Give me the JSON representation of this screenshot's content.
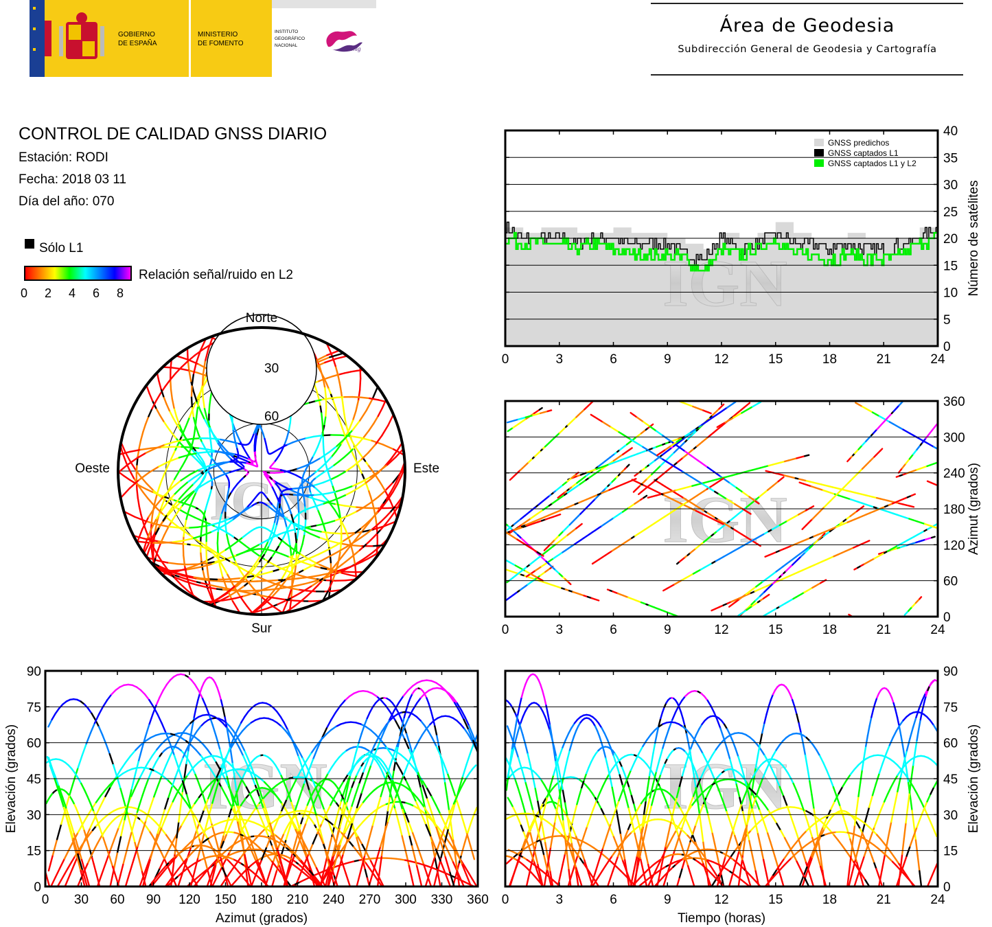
{
  "header": {
    "logo": {
      "gobierno": [
        "GOBIERNO",
        "DE ESPAÑA"
      ],
      "ministerio": [
        "MINISTERIO",
        "DE FOMENTO"
      ],
      "instituto": [
        "INSTITUTO",
        "GEOGRÁFICO",
        "NACIONAL"
      ],
      "cnig": "cnig"
    },
    "title": "Área de Geodesia",
    "subtitle": "Subdirección General de Geodesia y Cartografía"
  },
  "info": {
    "title": "CONTROL DE CALIDAD GNSS DIARIO",
    "station": "Estación: RODI",
    "date": "Fecha: 2018 03 11",
    "doy": "Día del año: 070"
  },
  "legend": {
    "solo_l1": "Sólo L1",
    "snr_label": "Relación señal/ruido en L2",
    "snr_ticks": [
      "0",
      "2",
      "4",
      "6",
      "8"
    ]
  },
  "watermark": "IGN",
  "colors": {
    "predicted": "#d9d9d9",
    "captured_l1": "#000000",
    "captured_l1l2": "#00ee00",
    "snr_scale": [
      "#ff0000",
      "#ff8000",
      "#ffff00",
      "#00ff00",
      "#00ffff",
      "#0080ff",
      "#0000ff",
      "#ff00ff"
    ]
  },
  "chart_data": [
    {
      "id": "satellite-count",
      "type": "area",
      "xlim": [
        0,
        24
      ],
      "ylim": [
        0,
        40
      ],
      "xticks": [
        "0",
        "3",
        "6",
        "9",
        "12",
        "15",
        "18",
        "21",
        "24"
      ],
      "yticks": [
        "0",
        "5",
        "10",
        "15",
        "20",
        "25",
        "30",
        "35",
        "40"
      ],
      "ylabel": "Número de satélites",
      "grid": true,
      "legend_position": "top-right",
      "x": [
        0,
        1,
        2,
        3,
        4,
        5,
        6,
        7,
        8,
        9,
        10,
        11,
        12,
        13,
        14,
        15,
        16,
        17,
        18,
        19,
        20,
        21,
        22,
        23,
        24
      ],
      "series": [
        {
          "name": "GNSS predichos",
          "values": [
            22,
            21,
            22,
            22,
            21,
            21,
            22,
            21,
            21,
            20,
            19,
            18,
            21,
            20,
            21,
            23,
            21,
            20,
            20,
            21,
            20,
            20,
            20,
            22,
            24
          ]
        },
        {
          "name": "GNSS captados L1",
          "values": [
            22,
            20,
            20,
            20,
            19,
            20,
            20,
            19,
            19,
            19,
            17,
            16,
            20,
            18,
            19,
            21,
            19,
            19,
            18,
            19,
            18,
            18,
            19,
            20,
            22
          ]
        },
        {
          "name": "GNSS captados L1 y L2",
          "values": [
            20,
            19,
            19,
            19,
            18,
            19,
            18,
            17,
            17,
            17,
            16,
            14,
            18,
            17,
            18,
            20,
            17,
            17,
            16,
            17,
            16,
            16,
            17,
            19,
            20
          ]
        }
      ]
    },
    {
      "id": "azimuth-time",
      "type": "scatter",
      "xlim": [
        0,
        24
      ],
      "ylim": [
        0,
        360
      ],
      "xticks": [
        "0",
        "3",
        "6",
        "9",
        "12",
        "15",
        "18",
        "21",
        "24"
      ],
      "yticks": [
        "0",
        "60",
        "120",
        "180",
        "240",
        "300",
        "360"
      ],
      "ylabel": "Azimut (grados)",
      "grid": true,
      "color_by": "snr_l2"
    },
    {
      "id": "skyplot",
      "type": "scatter",
      "projection": "polar",
      "rings": [
        "30",
        "60"
      ],
      "directions": {
        "north": "Norte",
        "south": "Sur",
        "east": "Este",
        "west": "Oeste"
      },
      "color_by": "snr_l2"
    },
    {
      "id": "elevation-azimuth",
      "type": "scatter",
      "xlim": [
        0,
        360
      ],
      "ylim": [
        0,
        90
      ],
      "xticks": [
        "0",
        "30",
        "60",
        "90",
        "120",
        "150",
        "180",
        "210",
        "240",
        "270",
        "300",
        "330",
        "360"
      ],
      "yticks": [
        "0",
        "15",
        "30",
        "45",
        "60",
        "75",
        "90"
      ],
      "xlabel": "Azimut (grados)",
      "ylabel": "Elevación (grados)",
      "grid": true,
      "color_by": "snr_l2"
    },
    {
      "id": "elevation-time",
      "type": "scatter",
      "xlim": [
        0,
        24
      ],
      "ylim": [
        0,
        90
      ],
      "xticks": [
        "0",
        "3",
        "6",
        "9",
        "12",
        "15",
        "18",
        "21",
        "24"
      ],
      "yticks": [
        "0",
        "15",
        "30",
        "45",
        "60",
        "75",
        "90"
      ],
      "xlabel": "Tiempo (horas)",
      "ylabel": "Elevación (grados)",
      "grid": true,
      "color_by": "snr_l2"
    }
  ]
}
